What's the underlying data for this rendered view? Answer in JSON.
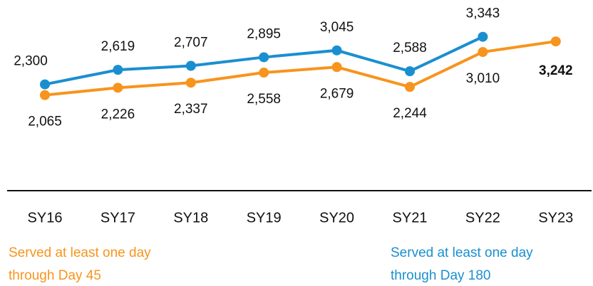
{
  "chart_data": {
    "type": "line",
    "categories": [
      "SY16",
      "SY17",
      "SY18",
      "SY19",
      "SY20",
      "SY21",
      "SY22",
      "SY23"
    ],
    "ylim": [
      0,
      4150
    ],
    "series": [
      {
        "name": "Served at least one day through Day 180",
        "color": "#1a8fd0",
        "values": [
          2300,
          2619,
          2707,
          2895,
          3045,
          2588,
          3343,
          null
        ],
        "value_labels": [
          "2,300",
          "2,619",
          "2,707",
          "2,895",
          "3,045",
          "2,588",
          "3,343",
          null
        ]
      },
      {
        "name": "Served at least one day through Day 45",
        "color": "#f7941d",
        "values": [
          2065,
          2226,
          2337,
          2558,
          2679,
          2244,
          3010,
          3242
        ],
        "value_labels": [
          "2,065",
          "2,226",
          "2,337",
          "2,558",
          "2,679",
          "2,244",
          "3,010",
          "3,242"
        ]
      }
    ]
  }
}
